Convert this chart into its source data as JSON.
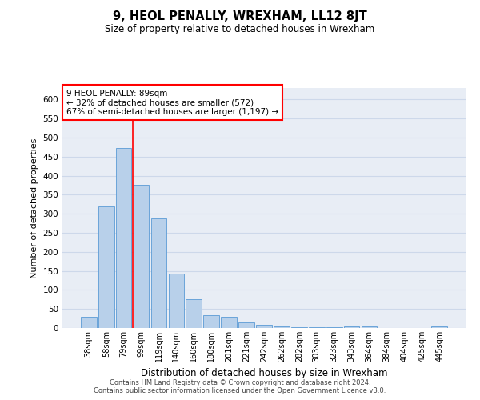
{
  "title": "9, HEOL PENALLY, WREXHAM, LL12 8JT",
  "subtitle": "Size of property relative to detached houses in Wrexham",
  "xlabel": "Distribution of detached houses by size in Wrexham",
  "ylabel": "Number of detached properties",
  "categories": [
    "38sqm",
    "58sqm",
    "79sqm",
    "99sqm",
    "119sqm",
    "140sqm",
    "160sqm",
    "180sqm",
    "201sqm",
    "221sqm",
    "242sqm",
    "262sqm",
    "282sqm",
    "303sqm",
    "323sqm",
    "343sqm",
    "364sqm",
    "384sqm",
    "404sqm",
    "425sqm",
    "445sqm"
  ],
  "values": [
    30,
    320,
    472,
    375,
    288,
    143,
    75,
    33,
    29,
    15,
    8,
    5,
    3,
    3,
    2,
    4,
    4,
    0,
    0,
    0,
    5
  ],
  "bar_color": "#b8d0ea",
  "bar_edge_color": "#5b9bd5",
  "grid_color": "#cdd8ea",
  "background_color": "#e8edf5",
  "annotation_text": "9 HEOL PENALLY: 89sqm\n← 32% of detached houses are smaller (572)\n67% of semi-detached houses are larger (1,197) →",
  "red_line_x": 2.5,
  "ylim_max": 630,
  "yticks": [
    0,
    50,
    100,
    150,
    200,
    250,
    300,
    350,
    400,
    450,
    500,
    550,
    600
  ],
  "footer1": "Contains HM Land Registry data © Crown copyright and database right 2024.",
  "footer2": "Contains public sector information licensed under the Open Government Licence v3.0."
}
